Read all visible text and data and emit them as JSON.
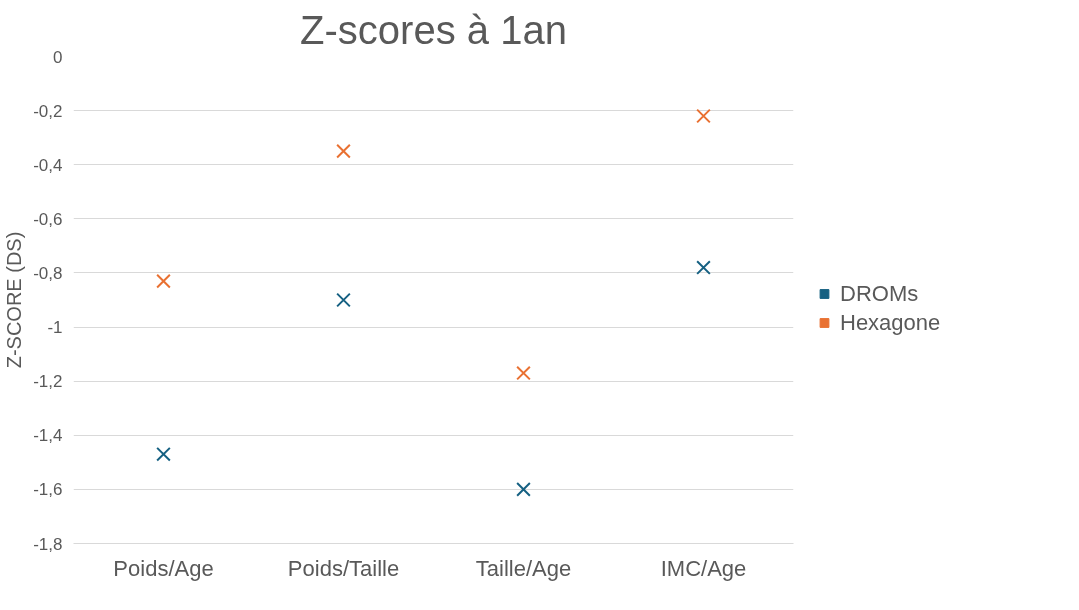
{
  "chart_data": {
    "type": "scatter",
    "title": "Z-scores à 1an",
    "ylabel": "Z-SCORE (DS)",
    "categories": [
      "Poids/Age",
      "Poids/Taille",
      "Taille/Age",
      "IMC/Age"
    ],
    "series": [
      {
        "name": "DROMs",
        "color": "#156082",
        "values": [
          -1.47,
          -0.9,
          -1.6,
          -0.78
        ]
      },
      {
        "name": "Hexagone",
        "color": "#e97132",
        "values": [
          -0.83,
          -0.35,
          -1.17,
          -0.22
        ]
      }
    ],
    "ylim": [
      -1.8,
      0
    ],
    "yticks": [
      0,
      {
        "value": -0.2,
        "label": "-0,2"
      },
      {
        "value": -0.4,
        "label": "-0,4"
      },
      {
        "value": -0.6,
        "label": "-0,6"
      },
      {
        "value": -0.8,
        "label": "-0,8"
      },
      -1,
      {
        "value": -1.2,
        "label": "-1,2"
      },
      {
        "value": -1.4,
        "label": "-1,4"
      },
      {
        "value": -1.6,
        "label": "-1,6"
      },
      {
        "value": -1.8,
        "label": "-1,8"
      }
    ],
    "grid": "y",
    "legend": "right",
    "marker": "cross"
  }
}
